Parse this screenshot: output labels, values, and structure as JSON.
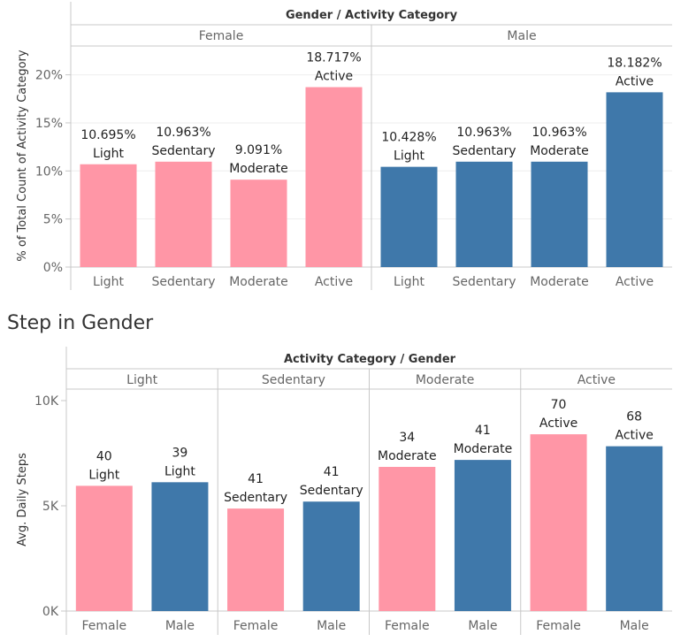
{
  "colors": {
    "female": "#ff96a6",
    "male": "#3f78aa",
    "divider": "#c8c8c8",
    "grid": "#eeeeee"
  },
  "chart_data": [
    {
      "type": "bar",
      "header": "Gender  /  Activity Category",
      "panes": [
        "Female",
        "Male"
      ],
      "categories": [
        "Light",
        "Sedentary",
        "Moderate",
        "Active"
      ],
      "ylabel": "% of Total Count of Activity Category",
      "ylim": [
        0,
        23
      ],
      "yticks": [
        0,
        5,
        10,
        15,
        20
      ],
      "ytick_labels": [
        "0%",
        "5%",
        "10%",
        "15%",
        "20%"
      ],
      "grid": true,
      "series": [
        {
          "pane": "Female",
          "color_key": "female",
          "values": [
            10.695,
            10.963,
            9.091,
            18.717
          ],
          "value_labels": [
            "10.695%",
            "10.963%",
            "9.091%",
            "18.717%"
          ],
          "name_labels": [
            "Light",
            "Sedentary",
            "Moderate",
            "Active"
          ]
        },
        {
          "pane": "Male",
          "color_key": "male",
          "values": [
            10.428,
            10.963,
            10.963,
            18.182
          ],
          "value_labels": [
            "10.428%",
            "10.963%",
            "10.963%",
            "18.182%"
          ],
          "name_labels": [
            "Light",
            "Sedentary",
            "Moderate",
            "Active"
          ]
        }
      ]
    },
    {
      "type": "bar",
      "title": "Step in Gender",
      "header": "Activity Category  /  Gender",
      "panes": [
        "Light",
        "Sedentary",
        "Moderate",
        "Active"
      ],
      "categories": [
        "Female",
        "Male"
      ],
      "ylabel": "Avg. Daily Steps",
      "ylim": [
        0,
        10000
      ],
      "yticks": [
        0,
        5000,
        10000
      ],
      "ytick_labels": [
        "0K",
        "5K",
        "10K"
      ],
      "grid": false,
      "bars": [
        {
          "pane": "Light",
          "category": "Female",
          "color_key": "female",
          "value": 5950,
          "count_label": "40",
          "name_label": "Light"
        },
        {
          "pane": "Light",
          "category": "Male",
          "color_key": "male",
          "value": 6120,
          "count_label": "39",
          "name_label": "Light"
        },
        {
          "pane": "Sedentary",
          "category": "Female",
          "color_key": "female",
          "value": 4870,
          "count_label": "41",
          "name_label": "Sedentary"
        },
        {
          "pane": "Sedentary",
          "category": "Male",
          "color_key": "male",
          "value": 5200,
          "count_label": "41",
          "name_label": "Sedentary"
        },
        {
          "pane": "Moderate",
          "category": "Female",
          "color_key": "female",
          "value": 6850,
          "count_label": "34",
          "name_label": "Moderate"
        },
        {
          "pane": "Moderate",
          "category": "Male",
          "color_key": "male",
          "value": 7180,
          "count_label": "41",
          "name_label": "Moderate"
        },
        {
          "pane": "Active",
          "category": "Female",
          "color_key": "female",
          "value": 8400,
          "count_label": "70",
          "name_label": "Active"
        },
        {
          "pane": "Active",
          "category": "Male",
          "color_key": "male",
          "value": 7830,
          "count_label": "68",
          "name_label": "Active"
        }
      ]
    }
  ]
}
